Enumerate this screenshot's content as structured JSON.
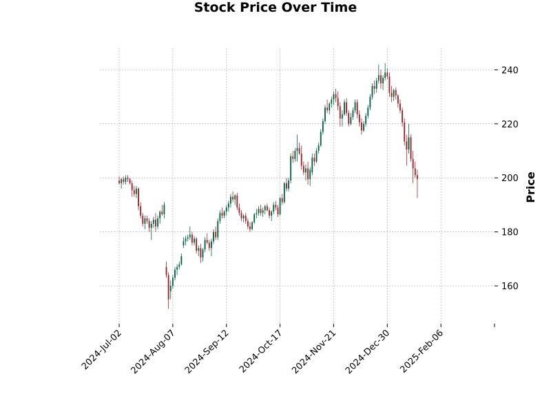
{
  "chart_data": {
    "type": "candlestick",
    "title": "Stock Price Over Time",
    "xlabel": "",
    "ylabel": "Price",
    "ylim": [
      146,
      248
    ],
    "y_ticks": [
      160,
      180,
      200,
      220,
      240
    ],
    "y_axis_side": "right",
    "x_tick_labels": [
      "2024-Jul-02",
      "2024-Aug-07",
      "2024-Sep-12",
      "2024-Oct-17",
      "2024-Nov-21",
      "2024-Dec-30",
      "2025-Feb-06"
    ],
    "x_tick_indices": [
      0,
      25,
      50,
      75,
      100,
      125,
      150
    ],
    "x_range": [
      -9,
      175
    ],
    "grid": true,
    "colors": {
      "up": "#006340",
      "down": "#a02128",
      "grid": "#a0a0a0"
    },
    "ohlc_fields": [
      "open",
      "high",
      "low",
      "close"
    ],
    "ohlc": [
      [
        199.0,
        200.5,
        197.5,
        198.0
      ],
      [
        198.0,
        200.0,
        196.0,
        199.5
      ],
      [
        199.5,
        200.5,
        197.5,
        198.5
      ],
      [
        198.5,
        201.0,
        197.5,
        200.0
      ],
      [
        200.0,
        201.0,
        198.5,
        199.5
      ],
      [
        199.5,
        200.0,
        197.5,
        198.0
      ],
      [
        198.0,
        199.0,
        193.0,
        195.5
      ],
      [
        195.5,
        197.0,
        193.0,
        194.0
      ],
      [
        194.0,
        197.0,
        192.5,
        196.0
      ],
      [
        196.0,
        196.5,
        188.0,
        189.5
      ],
      [
        189.5,
        191.0,
        185.0,
        186.0
      ],
      [
        186.0,
        187.0,
        182.0,
        183.0
      ],
      [
        183.0,
        186.0,
        181.0,
        185.0
      ],
      [
        185.0,
        186.0,
        183.0,
        184.0
      ],
      [
        184.0,
        185.0,
        180.0,
        181.5
      ],
      [
        181.5,
        184.0,
        177.0,
        183.0
      ],
      [
        183.0,
        185.5,
        181.5,
        184.5
      ],
      [
        184.5,
        187.0,
        180.0,
        182.0
      ],
      [
        182.0,
        186.0,
        181.0,
        185.0
      ],
      [
        185.0,
        188.0,
        183.0,
        187.5
      ],
      [
        187.5,
        190.0,
        186.0,
        186.5
      ],
      [
        186.5,
        191.0,
        185.0,
        190.0
      ],
      [
        167.0,
        169.0,
        163.0,
        164.0
      ],
      [
        164.0,
        165.0,
        151.5,
        155.0
      ],
      [
        158.0,
        162.0,
        155.0,
        160.0
      ],
      [
        160.0,
        164.0,
        159.0,
        163.0
      ],
      [
        163.0,
        167.0,
        162.0,
        166.0
      ],
      [
        166.0,
        168.0,
        164.0,
        167.0
      ],
      [
        167.0,
        169.0,
        166.0,
        168.0
      ],
      [
        168.0,
        172.0,
        167.5,
        171.0
      ],
      [
        175.0,
        178.0,
        174.0,
        176.5
      ],
      [
        176.5,
        178.5,
        175.0,
        177.5
      ],
      [
        177.5,
        179.0,
        176.5,
        178.0
      ],
      [
        178.0,
        182.0,
        177.0,
        179.0
      ],
      [
        179.0,
        180.0,
        175.0,
        176.0
      ],
      [
        176.0,
        178.5,
        175.0,
        177.5
      ],
      [
        177.5,
        178.0,
        172.0,
        173.0
      ],
      [
        173.0,
        175.0,
        171.0,
        174.0
      ],
      [
        174.0,
        175.5,
        168.5,
        170.5
      ],
      [
        170.5,
        174.0,
        169.0,
        173.5
      ],
      [
        173.5,
        178.0,
        172.5,
        177.0
      ],
      [
        177.0,
        179.5,
        175.5,
        176.0
      ],
      [
        176.0,
        177.0,
        173.0,
        174.0
      ],
      [
        174.0,
        177.5,
        171.0,
        176.5
      ],
      [
        176.5,
        181.0,
        175.5,
        180.0
      ],
      [
        180.0,
        182.0,
        177.0,
        178.0
      ],
      [
        178.0,
        185.0,
        177.0,
        184.0
      ],
      [
        184.0,
        188.0,
        183.0,
        187.0
      ],
      [
        187.0,
        189.0,
        185.0,
        186.0
      ],
      [
        186.0,
        188.0,
        185.0,
        187.5
      ],
      [
        187.5,
        190.0,
        186.0,
        189.0
      ],
      [
        189.0,
        191.5,
        187.5,
        190.5
      ],
      [
        190.5,
        194.0,
        189.0,
        193.0
      ],
      [
        193.0,
        195.0,
        191.0,
        192.0
      ],
      [
        192.0,
        194.0,
        190.0,
        193.5
      ],
      [
        193.5,
        194.5,
        188.0,
        189.0
      ],
      [
        189.0,
        190.5,
        186.0,
        187.0
      ],
      [
        187.0,
        188.0,
        184.0,
        185.0
      ],
      [
        185.0,
        186.5,
        183.5,
        186.0
      ],
      [
        186.0,
        187.0,
        183.0,
        184.0
      ],
      [
        184.0,
        185.0,
        181.0,
        182.0
      ],
      [
        182.0,
        183.5,
        180.0,
        181.0
      ],
      [
        181.0,
        184.0,
        180.5,
        183.5
      ],
      [
        183.5,
        187.0,
        183.0,
        186.5
      ],
      [
        186.5,
        188.5,
        185.0,
        187.0
      ],
      [
        187.0,
        189.5,
        186.0,
        188.5
      ],
      [
        188.5,
        190.0,
        186.0,
        187.0
      ],
      [
        187.0,
        189.0,
        185.5,
        188.0
      ],
      [
        188.0,
        190.0,
        186.5,
        189.5
      ],
      [
        189.5,
        190.5,
        187.5,
        188.0
      ],
      [
        188.0,
        189.0,
        185.0,
        186.0
      ],
      [
        186.0,
        188.0,
        184.0,
        187.5
      ],
      [
        187.5,
        191.0,
        186.5,
        190.0
      ],
      [
        190.0,
        191.5,
        188.0,
        189.0
      ],
      [
        189.0,
        190.0,
        185.5,
        186.5
      ],
      [
        186.5,
        193.0,
        186.0,
        192.5
      ],
      [
        192.5,
        194.0,
        190.0,
        191.0
      ],
      [
        191.0,
        198.5,
        190.5,
        198.0
      ],
      [
        198.0,
        200.0,
        195.0,
        196.0
      ],
      [
        196.0,
        200.0,
        195.0,
        199.0
      ],
      [
        199.0,
        209.0,
        198.0,
        208.0
      ],
      [
        208.0,
        210.0,
        205.5,
        207.0
      ],
      [
        207.0,
        211.0,
        206.0,
        210.0
      ],
      [
        210.0,
        216.0,
        206.0,
        211.0
      ],
      [
        211.0,
        213.0,
        208.5,
        209.0
      ],
      [
        209.0,
        212.0,
        203.0,
        204.5
      ],
      [
        204.5,
        206.0,
        201.0,
        202.0
      ],
      [
        202.0,
        205.0,
        199.0,
        203.5
      ],
      [
        203.5,
        206.0,
        197.5,
        199.5
      ],
      [
        199.5,
        204.0,
        197.0,
        203.0
      ],
      [
        202.0,
        209.0,
        201.0,
        207.5
      ],
      [
        207.5,
        209.0,
        204.5,
        206.0
      ],
      [
        206.0,
        211.0,
        205.5,
        210.0
      ],
      [
        210.0,
        213.0,
        209.0,
        212.0
      ],
      [
        212.0,
        218.0,
        211.5,
        217.0
      ],
      [
        217.0,
        222.0,
        216.0,
        221.0
      ],
      [
        221.0,
        227.0,
        220.0,
        226.0
      ],
      [
        226.0,
        229.0,
        224.0,
        225.0
      ],
      [
        225.0,
        228.0,
        223.5,
        227.5
      ],
      [
        227.5,
        230.0,
        226.0,
        229.0
      ],
      [
        229.0,
        232.0,
        227.0,
        231.0
      ],
      [
        231.0,
        233.0,
        228.0,
        229.5
      ],
      [
        229.5,
        232.0,
        225.0,
        226.5
      ],
      [
        226.5,
        228.0,
        219.0,
        222.0
      ],
      [
        222.0,
        225.0,
        219.0,
        223.5
      ],
      [
        223.5,
        229.0,
        223.0,
        228.0
      ],
      [
        228.0,
        229.5,
        223.0,
        224.0
      ],
      [
        224.0,
        225.0,
        219.0,
        220.0
      ],
      [
        220.0,
        224.0,
        219.5,
        222.5
      ],
      [
        222.5,
        226.0,
        221.5,
        225.0
      ],
      [
        225.0,
        229.0,
        224.0,
        228.0
      ],
      [
        228.0,
        229.0,
        222.0,
        223.5
      ],
      [
        223.5,
        225.0,
        219.0,
        220.5
      ],
      [
        220.5,
        222.0,
        216.0,
        217.5
      ],
      [
        217.5,
        221.0,
        217.0,
        220.0
      ],
      [
        220.0,
        224.0,
        219.0,
        223.0
      ],
      [
        223.0,
        227.0,
        222.0,
        226.0
      ],
      [
        226.0,
        231.0,
        225.0,
        230.0
      ],
      [
        230.0,
        235.0,
        229.0,
        234.0
      ],
      [
        234.0,
        236.0,
        231.0,
        233.0
      ],
      [
        233.0,
        237.0,
        231.5,
        236.0
      ],
      [
        236.0,
        242.0,
        235.0,
        238.0
      ],
      [
        238.0,
        240.0,
        233.0,
        235.0
      ],
      [
        235.0,
        238.0,
        232.5,
        237.0
      ],
      [
        237.0,
        242.5,
        236.0,
        239.0
      ],
      [
        239.0,
        240.5,
        236.5,
        237.5
      ],
      [
        237.5,
        239.0,
        230.0,
        231.5
      ],
      [
        231.5,
        234.0,
        228.0,
        230.0
      ],
      [
        230.0,
        233.0,
        228.5,
        232.5
      ],
      [
        232.5,
        233.5,
        229.0,
        230.5
      ],
      [
        230.5,
        231.0,
        226.0,
        227.5
      ],
      [
        227.5,
        229.0,
        224.0,
        225.0
      ],
      [
        225.0,
        226.0,
        219.0,
        220.5
      ],
      [
        220.5,
        222.0,
        212.0,
        213.5
      ],
      [
        213.5,
        216.0,
        204.5,
        210.5
      ],
      [
        210.5,
        220.0,
        209.0,
        215.0
      ],
      [
        215.0,
        216.0,
        206.0,
        207.0
      ],
      [
        207.0,
        210.0,
        198.0,
        203.5
      ],
      [
        203.5,
        206.0,
        200.0,
        201.0
      ],
      [
        201.0,
        203.0,
        192.5,
        199.5
      ]
    ]
  }
}
